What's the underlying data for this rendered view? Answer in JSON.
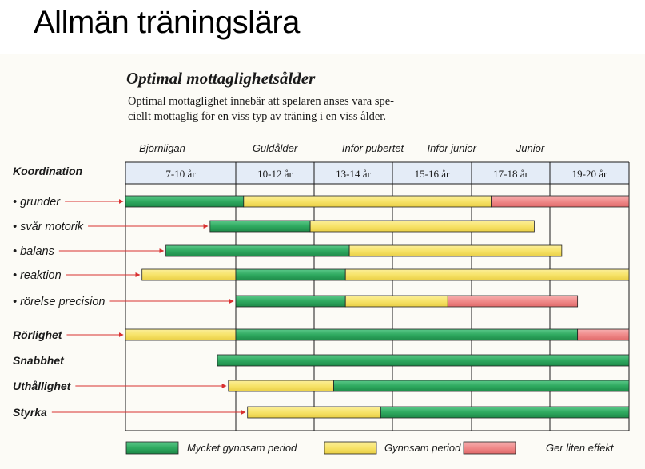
{
  "title": "Allmän träningslära",
  "subtitle": "Optimal mottaglighetsålder",
  "description": [
    "Optimal mottaglighet innebär att spelaren anses vara spe-",
    "ciellt mottaglig för en viss typ av träning i en viss ålder."
  ],
  "colors": {
    "very_favorable": "#2faa60",
    "favorable": "#f7e36a",
    "less_effect": "#f08a8a",
    "header_bg": "#e4ecf7",
    "arrow": "#d93030"
  },
  "chart_data": {
    "type": "table",
    "phases": [
      {
        "label": "Björnligan",
        "age": 8
      },
      {
        "label": "Guldålder",
        "age": 11
      },
      {
        "label": "Inför pubertet",
        "age": 13.5
      },
      {
        "label": "Inför junior",
        "age": 15.5
      },
      {
        "label": "Junior",
        "age": 17.5
      }
    ],
    "age_groups": [
      {
        "label": "7-10 år",
        "from": 7,
        "to": 10
      },
      {
        "label": "10-12 år",
        "from": 10,
        "to": 12
      },
      {
        "label": "13-14 år",
        "from": 12,
        "to": 14
      },
      {
        "label": "15-16 år",
        "from": 14,
        "to": 16
      },
      {
        "label": "17-18 år",
        "from": 16,
        "to": 18
      },
      {
        "label": "19-20 år",
        "from": 18,
        "to": 20
      }
    ],
    "header_label": "Koordination",
    "rows": [
      {
        "label": "• grunder",
        "bold": false,
        "arrow": true,
        "segments": [
          {
            "from": 7,
            "to": 10.2,
            "kind": "very_favorable"
          },
          {
            "from": 10.2,
            "to": 16.5,
            "kind": "favorable"
          },
          {
            "from": 16.5,
            "to": 20,
            "kind": "less_effect"
          }
        ]
      },
      {
        "label": "• svår motorik",
        "bold": false,
        "arrow": true,
        "segments": [
          {
            "from": 9.3,
            "to": 11.9,
            "kind": "very_favorable"
          },
          {
            "from": 11.9,
            "to": 17.6,
            "kind": "favorable"
          }
        ]
      },
      {
        "label": "• balans",
        "bold": false,
        "arrow": true,
        "segments": [
          {
            "from": 8.1,
            "to": 12.9,
            "kind": "very_favorable"
          },
          {
            "from": 12.9,
            "to": 18.3,
            "kind": "favorable"
          }
        ]
      },
      {
        "label": "• reaktion",
        "bold": false,
        "arrow": true,
        "segments": [
          {
            "from": 7.45,
            "to": 10,
            "kind": "favorable"
          },
          {
            "from": 10,
            "to": 12.8,
            "kind": "very_favorable"
          },
          {
            "from": 12.8,
            "to": 20,
            "kind": "favorable"
          }
        ]
      },
      {
        "label": "• rörelse precision",
        "bold": false,
        "arrow": true,
        "segments": [
          {
            "from": 10,
            "to": 12.8,
            "kind": "very_favorable"
          },
          {
            "from": 12.8,
            "to": 15.4,
            "kind": "favorable"
          },
          {
            "from": 15.4,
            "to": 18.7,
            "kind": "less_effect"
          }
        ]
      },
      {
        "label": "Rörlighet",
        "bold": true,
        "arrow": true,
        "segments": [
          {
            "from": 7,
            "to": 10,
            "kind": "favorable"
          },
          {
            "from": 10,
            "to": 18.7,
            "kind": "very_favorable"
          },
          {
            "from": 18.7,
            "to": 20,
            "kind": "less_effect"
          }
        ]
      },
      {
        "label": "Snabbhet",
        "bold": true,
        "arrow": false,
        "segments": [
          {
            "from": 9.5,
            "to": 20,
            "kind": "very_favorable"
          }
        ]
      },
      {
        "label": "Uthållighet",
        "bold": true,
        "arrow": true,
        "segments": [
          {
            "from": 9.8,
            "to": 12.5,
            "kind": "favorable"
          },
          {
            "from": 12.5,
            "to": 20,
            "kind": "very_favorable"
          }
        ]
      },
      {
        "label": "Styrka",
        "bold": true,
        "arrow": true,
        "segments": [
          {
            "from": 10.3,
            "to": 13.7,
            "kind": "favorable"
          },
          {
            "from": 13.7,
            "to": 20,
            "kind": "very_favorable"
          }
        ]
      }
    ],
    "legend": [
      {
        "kind": "very_favorable",
        "label": "Mycket gynnsam period"
      },
      {
        "kind": "favorable",
        "label": "Gynnsam period"
      },
      {
        "kind": "less_effect",
        "label": "Ger liten effekt"
      }
    ]
  }
}
